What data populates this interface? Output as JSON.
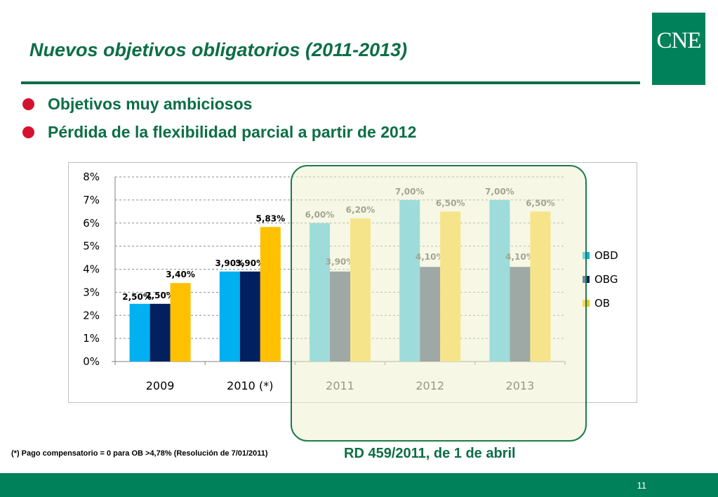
{
  "slide": {
    "title": "Nuevos objetivos obligatorios (2011-2013)",
    "logo_text": "CNE",
    "bullets": [
      "Objetivos muy ambiciosos",
      "Pérdida de la flexibilidad parcial a partir de 2012"
    ],
    "footnote": "(*) Pago compensatorio = 0 para OB >4,78% (Resolución de 7/01/2011)",
    "rd_note": "RD 459/2011, de 1 de abril",
    "page_number": "11"
  },
  "colors": {
    "brand_green": "#0c6e46",
    "bullet_red": "#d4112f",
    "footer_green": "#008159",
    "OBD_2009_2010": "#00b0f0",
    "OBG_2009_2010": "#002060",
    "OB_2009_2010": "#ffc000",
    "OBD_2011_2013": "#4dc8e9",
    "OBG_2011_2013": "#4f6280",
    "OB_2011_2013": "#ffd94a"
  },
  "chart_data": {
    "type": "bar",
    "categories": [
      "2009",
      "2010 (*)",
      "2011",
      "2012",
      "2013"
    ],
    "series": [
      {
        "name": "OBD",
        "values": [
          2.5,
          3.9,
          6.0,
          7.0,
          7.0
        ],
        "labels": [
          "",
          "3,90%",
          "6,00%",
          "7,00%",
          "7,00%"
        ]
      },
      {
        "name": "OBG",
        "values": [
          2.5,
          3.9,
          3.9,
          4.1,
          4.1
        ],
        "labels": [
          "2,50%",
          "3,90%",
          "3,90%",
          "4,10%",
          "4,10%"
        ]
      },
      {
        "name": "OB",
        "values": [
          3.4,
          5.83,
          6.2,
          6.5,
          6.5
        ],
        "labels": [
          "3,40%",
          "5,83%",
          "6,20%",
          "6,50%",
          "6,50%"
        ]
      }
    ],
    "extra_labels": [
      {
        "category": "2009",
        "series": "OBD",
        "text": "2,50%"
      }
    ],
    "yticks": [
      "0%",
      "1%",
      "2%",
      "3%",
      "4%",
      "5%",
      "6%",
      "7%",
      "8%"
    ],
    "ylim": [
      0,
      8
    ],
    "grid": true,
    "legend": "right",
    "highlighted_categories": [
      "2011",
      "2012",
      "2013"
    ]
  }
}
